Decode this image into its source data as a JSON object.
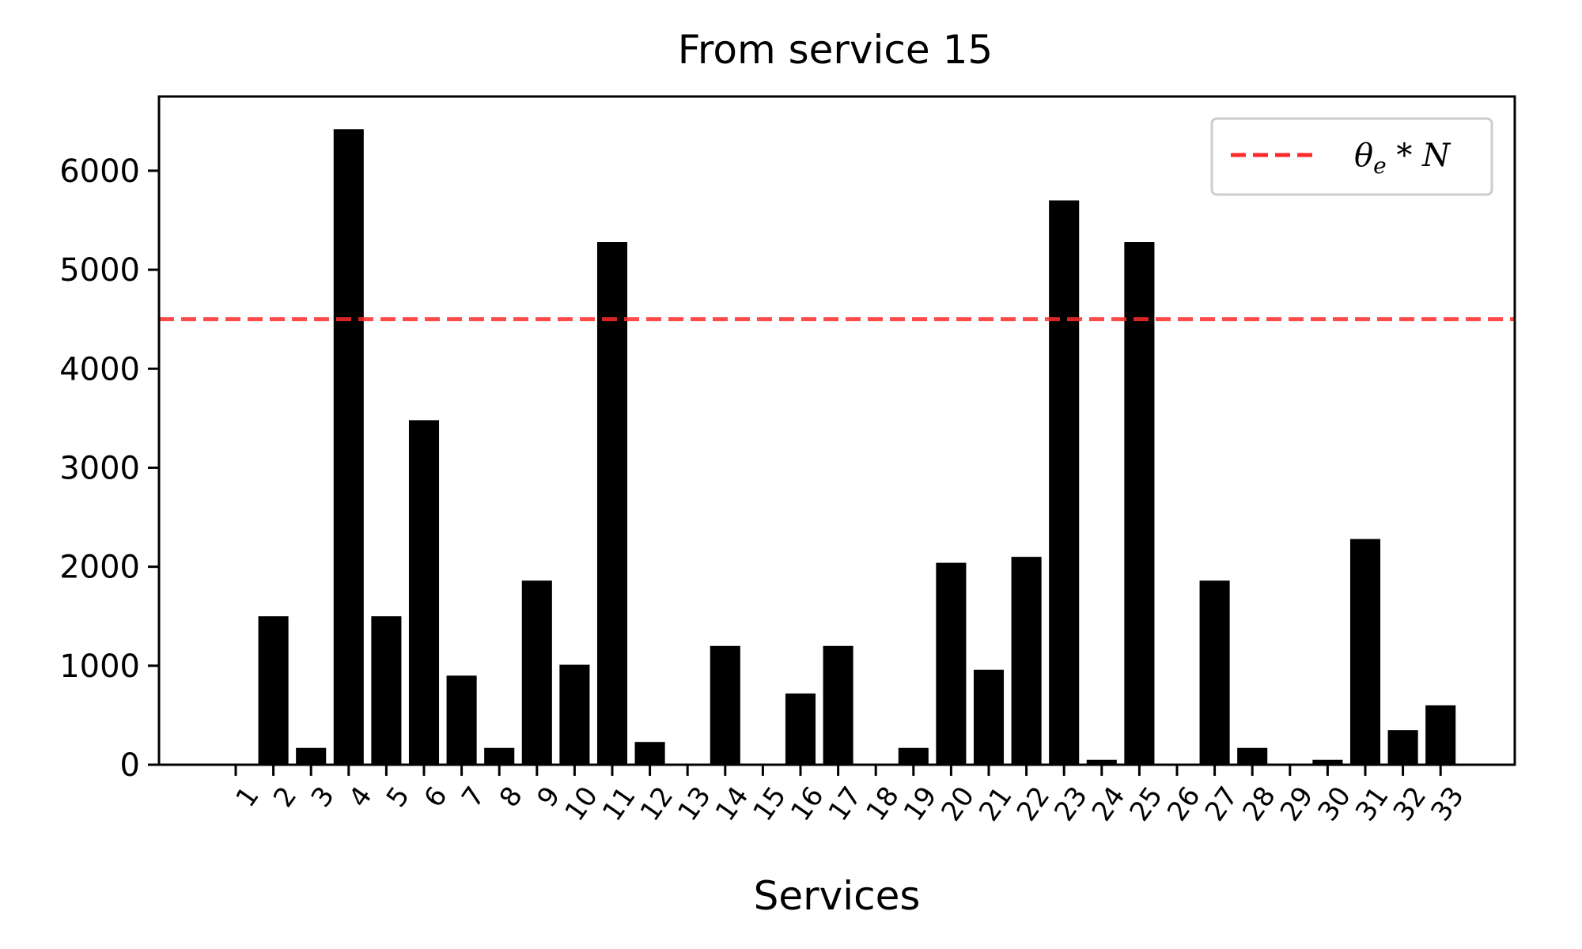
{
  "chart_data": {
    "type": "bar",
    "title": "From service 15",
    "xlabel": "Services",
    "ylabel": "",
    "categories": [
      "1",
      "2",
      "3",
      "4",
      "5",
      "6",
      "7",
      "8",
      "9",
      "10",
      "11",
      "12",
      "13",
      "14",
      "15",
      "16",
      "17",
      "18",
      "19",
      "20",
      "21",
      "22",
      "23",
      "24",
      "25",
      "26",
      "27",
      "28",
      "29",
      "30",
      "31",
      "32",
      "33"
    ],
    "values": [
      0,
      1500,
      170,
      6420,
      1500,
      3480,
      900,
      170,
      1860,
      1010,
      5280,
      230,
      0,
      1200,
      0,
      720,
      1200,
      0,
      170,
      2040,
      960,
      2100,
      5700,
      50,
      5280,
      0,
      1860,
      170,
      0,
      50,
      2280,
      350,
      600
    ],
    "bar_color": "#000000",
    "ylim": [
      0,
      6750
    ],
    "yticks": [
      0,
      1000,
      2000,
      3000,
      4000,
      5000,
      6000
    ],
    "xtick_rotation": -55,
    "grid": false,
    "threshold": {
      "value": 4500,
      "color": "#ff2a2a",
      "style": "dashed",
      "label_base": "θ",
      "label_sub": "e",
      "label_rest": " * N"
    },
    "legend": {
      "position": "top-right"
    }
  }
}
